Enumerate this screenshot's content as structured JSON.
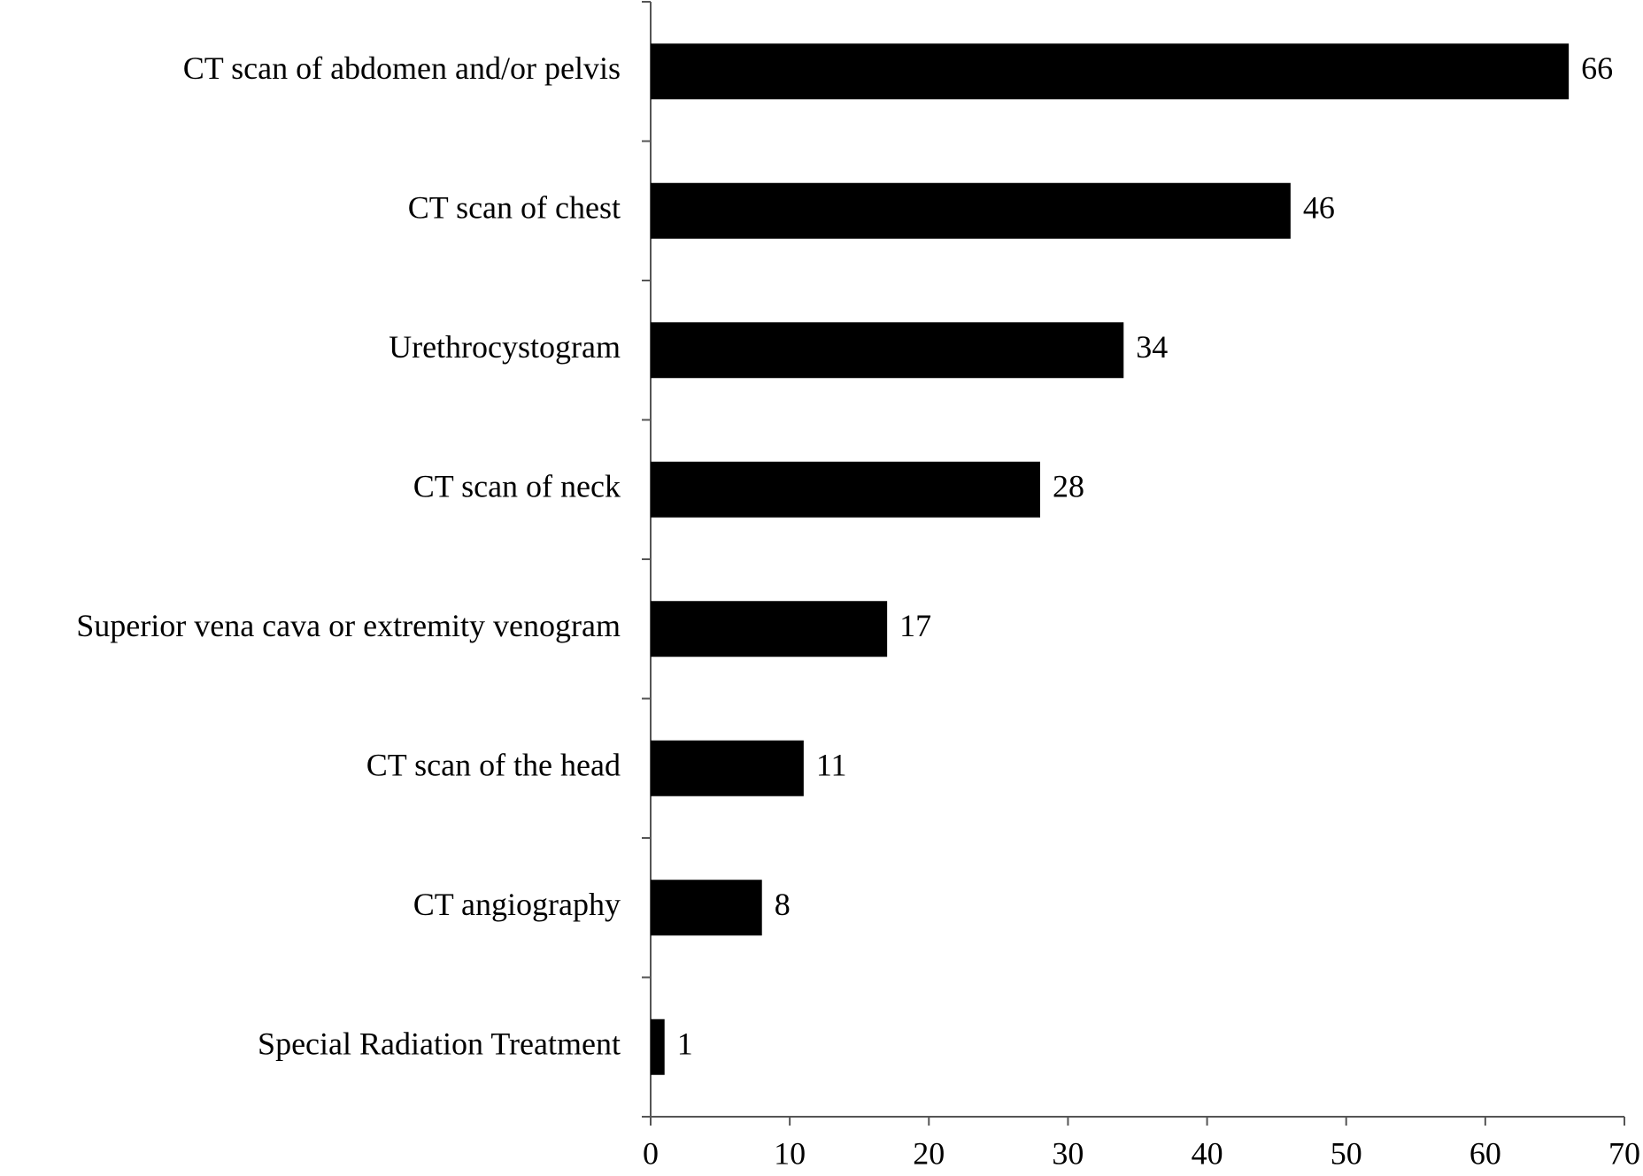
{
  "chart_data": {
    "type": "barh",
    "categories": [
      "CT scan of abdomen and/or pelvis",
      "CT scan of chest",
      "Urethrocystogram",
      "CT scan of neck",
      "Superior vena cava or extremity venogram",
      "CT scan of the head",
      "CT angiography",
      "Special Radiation Treatment"
    ],
    "values": [
      66,
      46,
      34,
      28,
      17,
      11,
      8,
      1
    ],
    "color": "#000000",
    "xlim": [
      0,
      70
    ],
    "xticks": [
      0,
      10,
      20,
      30,
      40,
      50,
      60,
      70
    ],
    "grid": false
  }
}
